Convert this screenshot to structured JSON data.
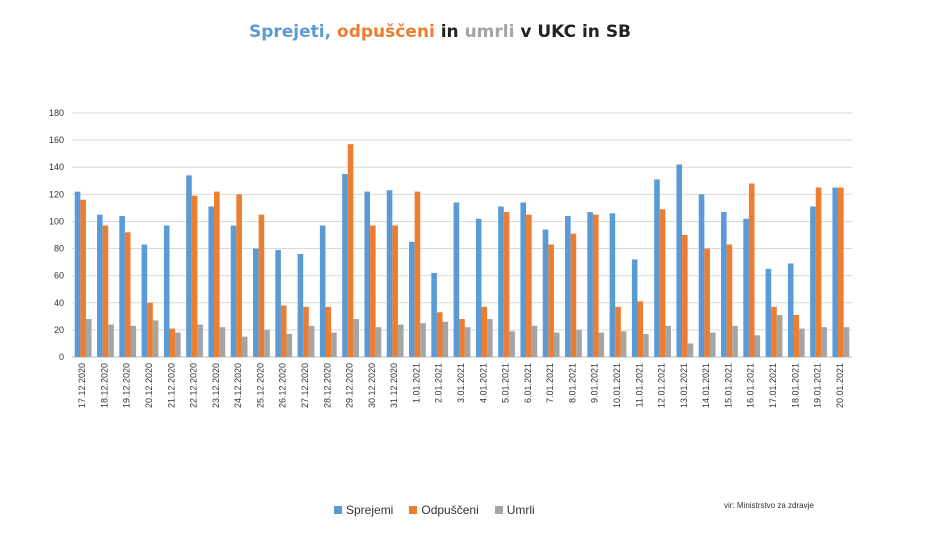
{
  "title_parts": [
    {
      "text": "Sprejeti",
      "color": "#5B9BD5"
    },
    {
      "text": ", ",
      "color": "#5B9BD5"
    },
    {
      "text": "odpuščeni",
      "color": "#ED7D31"
    },
    {
      "text": " in ",
      "color": "#222222"
    },
    {
      "text": "umrli",
      "color": "#A5A5A5"
    },
    {
      "text": " v UKC in SB",
      "color": "#222222"
    }
  ],
  "source": "vir: Ministrstvo za zdravje",
  "chart_data": {
    "type": "bar",
    "title": "Sprejeti, odpuščeni in umrli v UKC in SB",
    "xlabel": "",
    "ylabel": "",
    "ylim": [
      0,
      180
    ],
    "yticks": [
      0,
      20,
      40,
      60,
      80,
      100,
      120,
      140,
      160,
      180
    ],
    "grid": true,
    "legend": "bottom",
    "categories": [
      "17.12.2020",
      "18.12.2020",
      "19.12.2020",
      "20.12.2020",
      "21.12.2020",
      "22.12.2020",
      "23.12.2020",
      "24.12.2020",
      "25.12.2020",
      "26.12.2020",
      "27.12.2020",
      "28.12.2020",
      "29.12.2020",
      "30.12.2020",
      "31.12.2020",
      "1.01.2021",
      "2.01.2021",
      "3.01.2021",
      "4.01.2021",
      "5.01.2021",
      "6.01.2021",
      "7.01.2021",
      "8.01.2021",
      "9.01.2021",
      "10.01.2021",
      "11.01.2021",
      "12.01.2021",
      "13.01.2021",
      "14.01.2021",
      "15.01.2021",
      "16.01.2021",
      "17.01.2021",
      "18.01.2021",
      "19.01.2021",
      "20.01.2021"
    ],
    "series": [
      {
        "name": "Sprejemi",
        "color": "#5B9BD5",
        "values": [
          122,
          105,
          104,
          83,
          97,
          134,
          111,
          97,
          80,
          79,
          76,
          97,
          135,
          122,
          123,
          85,
          62,
          114,
          102,
          111,
          114,
          94,
          104,
          107,
          106,
          72,
          131,
          142,
          120,
          107,
          102,
          65,
          69,
          111,
          125
        ]
      },
      {
        "name": "Odpuščeni",
        "color": "#ED7D31",
        "values": [
          116,
          97,
          92,
          40,
          21,
          119,
          122,
          120,
          105,
          38,
          37,
          37,
          157,
          97,
          97,
          122,
          33,
          28,
          37,
          107,
          105,
          83,
          91,
          105,
          37,
          41,
          109,
          90,
          80,
          83,
          128,
          37,
          31,
          125,
          125
        ]
      },
      {
        "name": "Umrli",
        "color": "#A5A5A5",
        "values": [
          28,
          24,
          23,
          27,
          18,
          24,
          22,
          15,
          20,
          17,
          23,
          18,
          28,
          22,
          24,
          25,
          26,
          22,
          28,
          19,
          23,
          18,
          20,
          18,
          19,
          17,
          23,
          10,
          18,
          23,
          16,
          31,
          21,
          22,
          22
        ]
      }
    ]
  }
}
